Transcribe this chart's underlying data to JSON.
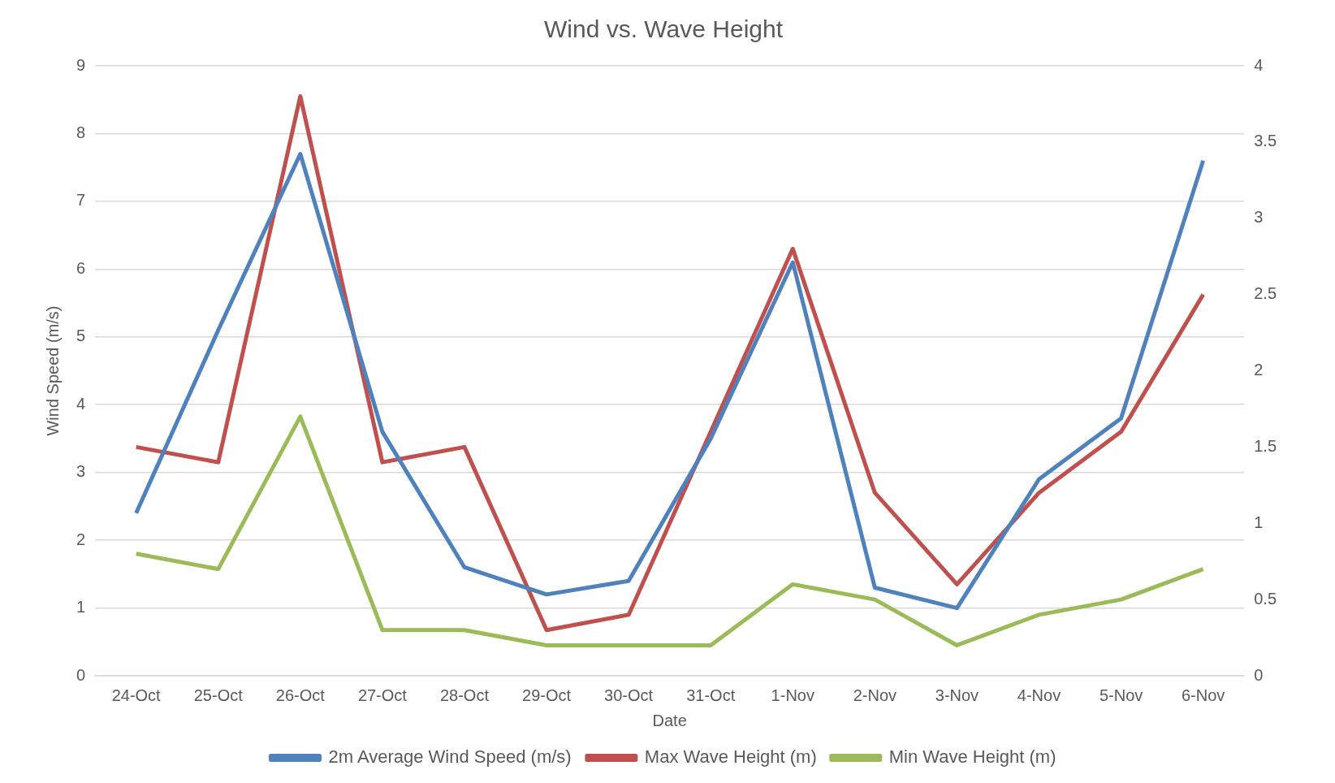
{
  "chart_data": {
    "type": "line",
    "title": "Wind vs. Wave Height",
    "xlabel": "Date",
    "ylabel": "Wind Speed (m/s)",
    "categories": [
      "24-Oct",
      "25-Oct",
      "26-Oct",
      "27-Oct",
      "28-Oct",
      "29-Oct",
      "30-Oct",
      "31-Oct",
      "1-Nov",
      "2-Nov",
      "3-Nov",
      "4-Nov",
      "5-Nov",
      "6-Nov"
    ],
    "series": [
      {
        "name": "2m Average Wind Speed (m/s)",
        "color": "#4f81bd",
        "values": [
          2.4,
          5.1,
          7.7,
          3.6,
          1.6,
          1.2,
          1.4,
          3.5,
          6.1,
          1.3,
          1.0,
          2.9,
          3.8,
          7.6
        ]
      },
      {
        "name": "Max Wave Height (m)",
        "color": "#c0504d",
        "axis": "y2",
        "values": [
          1.5,
          1.4,
          3.8,
          1.4,
          1.5,
          0.3,
          0.4,
          1.6,
          2.8,
          1.2,
          0.6,
          1.2,
          1.6,
          2.5
        ]
      },
      {
        "name": "Min Wave Height (m)",
        "color": "#9bbb59",
        "axis": "y2",
        "values": [
          0.8,
          0.7,
          1.7,
          0.3,
          0.3,
          0.2,
          0.2,
          0.2,
          0.6,
          0.5,
          0.2,
          0.4,
          0.5,
          0.7
        ]
      }
    ],
    "ylim": [
      0,
      9
    ],
    "yticks": [
      0,
      1,
      2,
      3,
      4,
      5,
      6,
      7,
      8,
      9
    ],
    "y2lim": [
      0,
      4
    ],
    "y2ticks": [
      0,
      0.5,
      1,
      1.5,
      2,
      2.5,
      3,
      3.5,
      4
    ],
    "grid": "y",
    "legend": "bottom",
    "marker": "none",
    "line_style": "solid"
  }
}
